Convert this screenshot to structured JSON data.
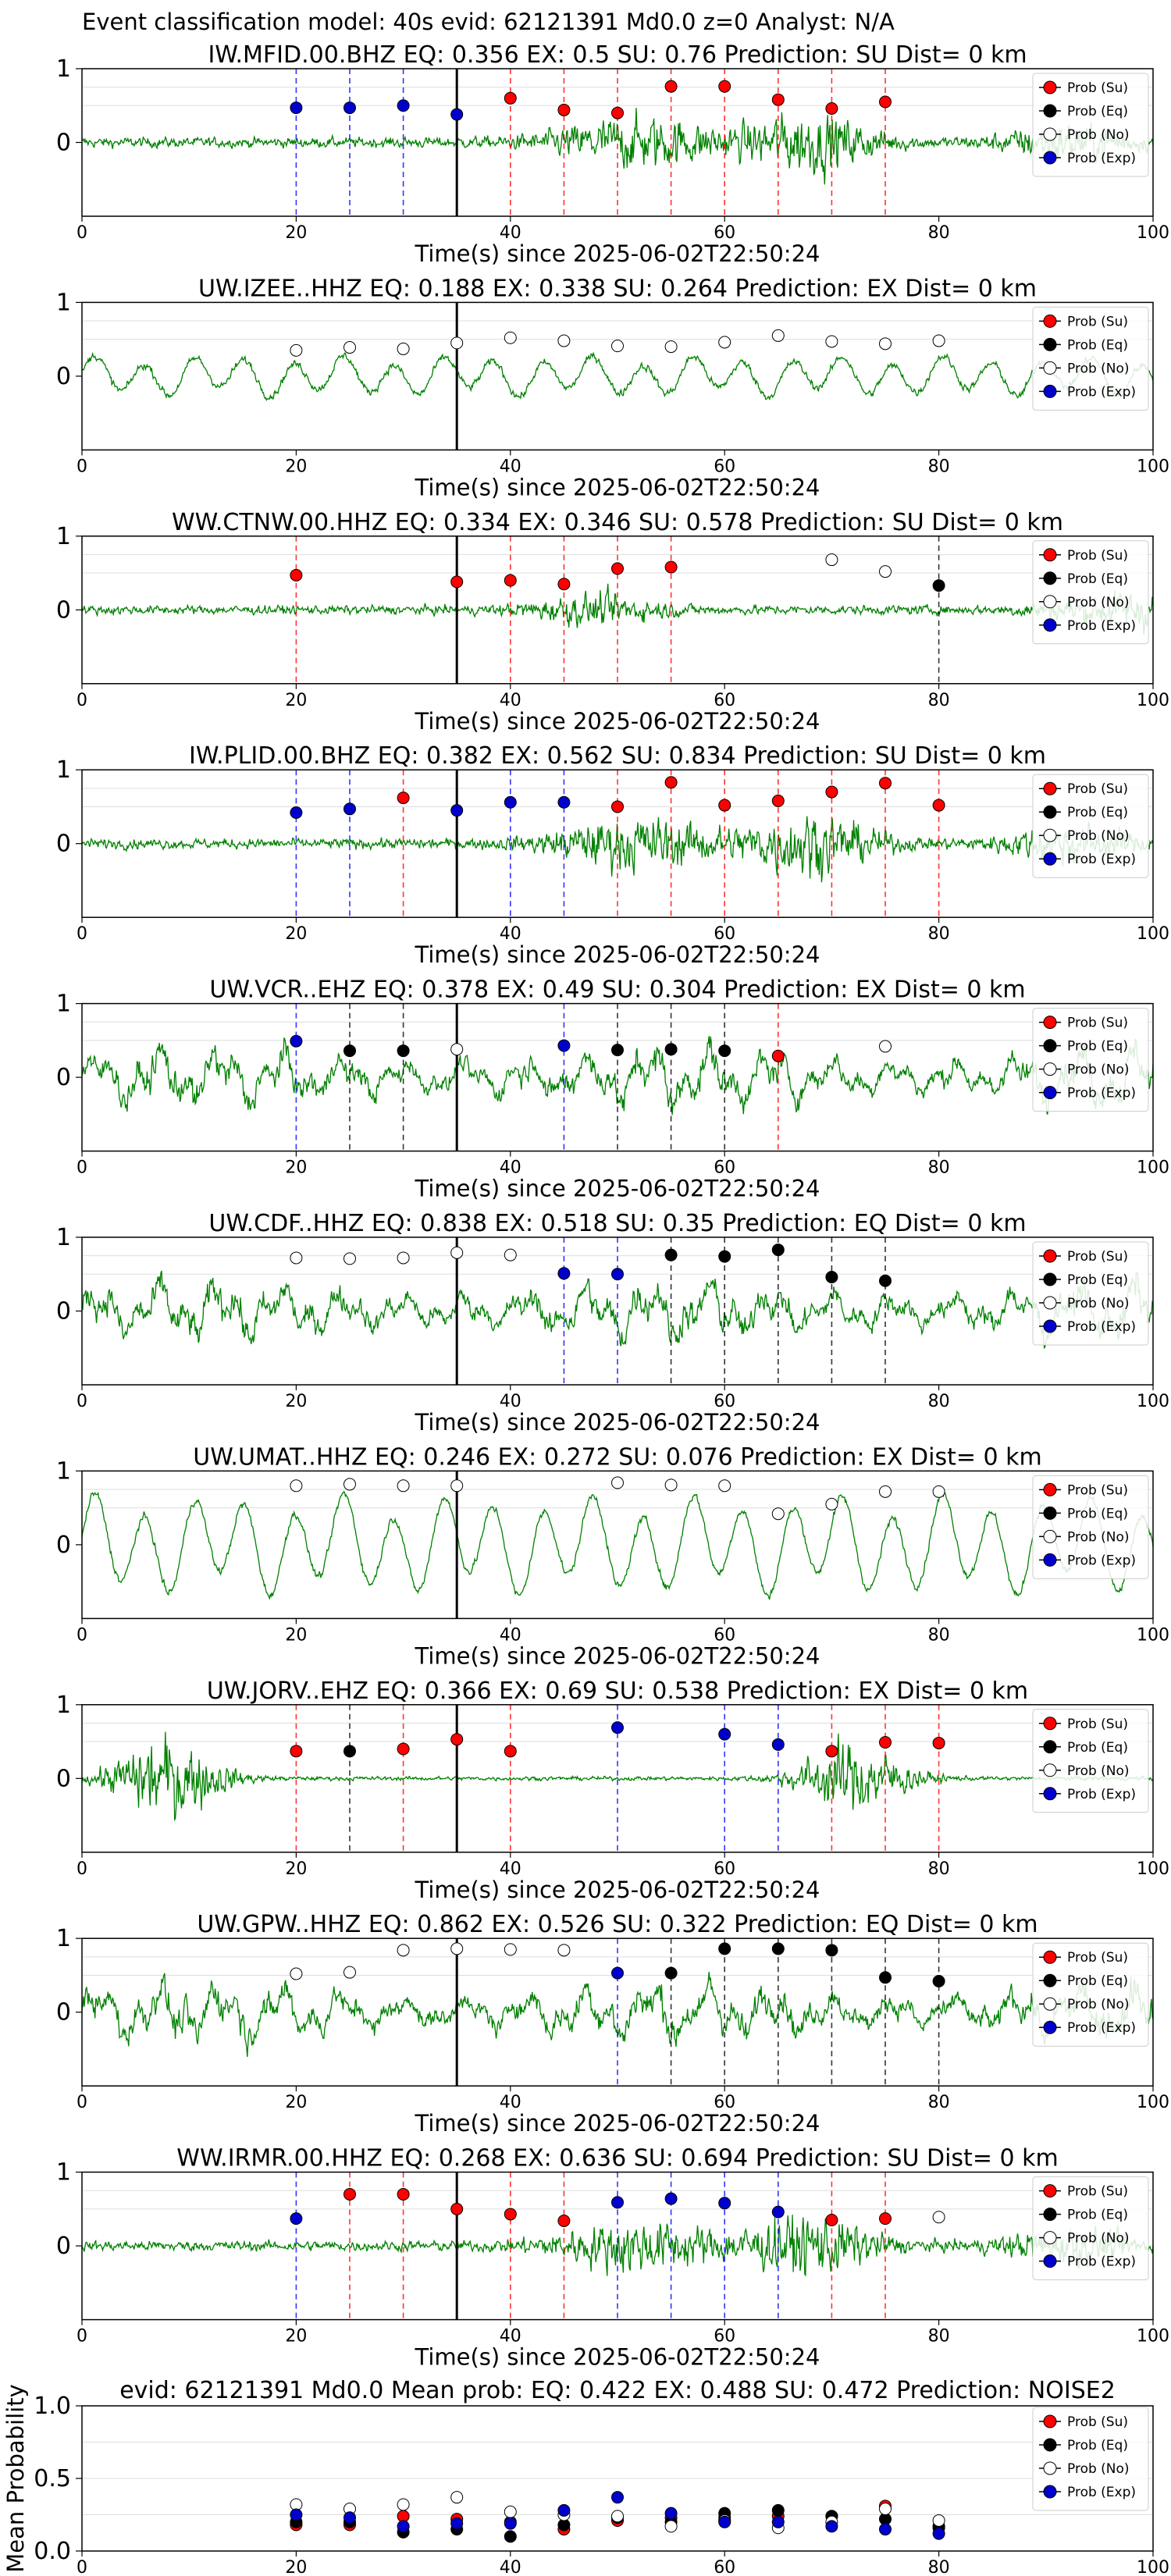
{
  "figure_title": "Event classification model: 40s evid: 62121391 Md0.0 z=0 Analyst: N/A",
  "legend_labels": [
    "Prob (Su)",
    "Prob (Eq)",
    "Prob (No)",
    "Prob (Exp)"
  ],
  "colors": {
    "su": "#ff0000",
    "eq": "#000000",
    "no": "#ffffff",
    "exp": "#0000cc",
    "trace": "#008000",
    "vline_su": "#ff0000",
    "vline_eq": "#000000",
    "vline_exp": "#0000ff"
  },
  "chart_data": [
    {
      "type": "line",
      "station": "IW.MFID.00.BHZ",
      "title": "IW.MFID.00.BHZ   EQ: 0.356  EX: 0.5  SU: 0.76   Prediction: SU    Dist= 0 km",
      "xlabel": "Time(s) since 2025-06-02T22:50:24",
      "xlim": [
        0,
        100
      ],
      "ylim": [
        -1,
        1
      ],
      "xticks": [
        "0",
        "20",
        "40",
        "60",
        "80",
        "100"
      ],
      "yticks": [
        "0",
        "1"
      ],
      "pick_time": 35,
      "trace_style": "noisy_burst",
      "legend": "top-right",
      "points": [
        {
          "x": 20,
          "y": 0.47,
          "class": "exp"
        },
        {
          "x": 25,
          "y": 0.47,
          "class": "exp"
        },
        {
          "x": 30,
          "y": 0.5,
          "class": "exp"
        },
        {
          "x": 35,
          "y": 0.38,
          "class": "exp"
        },
        {
          "x": 40,
          "y": 0.6,
          "class": "su"
        },
        {
          "x": 45,
          "y": 0.44,
          "class": "su"
        },
        {
          "x": 50,
          "y": 0.4,
          "class": "su"
        },
        {
          "x": 55,
          "y": 0.76,
          "class": "su"
        },
        {
          "x": 60,
          "y": 0.76,
          "class": "su"
        },
        {
          "x": 65,
          "y": 0.58,
          "class": "su"
        },
        {
          "x": 70,
          "y": 0.46,
          "class": "su"
        },
        {
          "x": 75,
          "y": 0.55,
          "class": "su"
        }
      ]
    },
    {
      "type": "line",
      "station": "UW.IZEE..HHZ",
      "title": "UW.IZEE..HHZ   EQ: 0.188  EX: 0.338  SU: 0.264   Prediction: EX    Dist= 0 km",
      "xlabel": "Time(s) since 2025-06-02T22:50:24",
      "xlim": [
        0,
        100
      ],
      "ylim": [
        -1,
        1
      ],
      "xticks": [
        "0",
        "20",
        "40",
        "60",
        "80",
        "100"
      ],
      "yticks": [
        "0",
        "1"
      ],
      "pick_time": 35,
      "trace_style": "oscillating",
      "legend": "top-right",
      "points": [
        {
          "x": 20,
          "y": 0.35,
          "class": "no"
        },
        {
          "x": 25,
          "y": 0.39,
          "class": "no"
        },
        {
          "x": 30,
          "y": 0.37,
          "class": "no"
        },
        {
          "x": 35,
          "y": 0.45,
          "class": "no"
        },
        {
          "x": 40,
          "y": 0.52,
          "class": "no"
        },
        {
          "x": 45,
          "y": 0.48,
          "class": "no"
        },
        {
          "x": 50,
          "y": 0.41,
          "class": "no"
        },
        {
          "x": 55,
          "y": 0.4,
          "class": "no"
        },
        {
          "x": 60,
          "y": 0.46,
          "class": "no"
        },
        {
          "x": 65,
          "y": 0.55,
          "class": "no"
        },
        {
          "x": 70,
          "y": 0.47,
          "class": "no"
        },
        {
          "x": 75,
          "y": 0.44,
          "class": "no"
        },
        {
          "x": 80,
          "y": 0.48,
          "class": "no"
        }
      ]
    },
    {
      "type": "line",
      "station": "WW.CTNW.00.HHZ",
      "title": "WW.CTNW.00.HHZ   EQ: 0.334  EX: 0.346  SU: 0.578   Prediction: SU    Dist= 0 km",
      "xlabel": "Time(s) since 2025-06-02T22:50:24",
      "xlim": [
        0,
        100
      ],
      "ylim": [
        -1,
        1
      ],
      "xticks": [
        "0",
        "20",
        "40",
        "60",
        "80",
        "100"
      ],
      "yticks": [
        "0",
        "1"
      ],
      "pick_time": 35,
      "trace_style": "noisy_tail",
      "legend": "top-right",
      "points": [
        {
          "x": 20,
          "y": 0.47,
          "class": "su"
        },
        {
          "x": 35,
          "y": 0.38,
          "class": "su"
        },
        {
          "x": 40,
          "y": 0.4,
          "class": "su"
        },
        {
          "x": 45,
          "y": 0.35,
          "class": "su"
        },
        {
          "x": 50,
          "y": 0.56,
          "class": "su"
        },
        {
          "x": 55,
          "y": 0.58,
          "class": "su"
        },
        {
          "x": 70,
          "y": 0.68,
          "class": "no"
        },
        {
          "x": 75,
          "y": 0.52,
          "class": "no"
        },
        {
          "x": 80,
          "y": 0.33,
          "class": "eq"
        }
      ]
    },
    {
      "type": "line",
      "station": "IW.PLID.00.BHZ",
      "title": "IW.PLID.00.BHZ   EQ: 0.382  EX: 0.562  SU: 0.834   Prediction: SU    Dist= 0 km",
      "xlabel": "Time(s) since 2025-06-02T22:50:24",
      "xlim": [
        0,
        100
      ],
      "ylim": [
        -1,
        1
      ],
      "xticks": [
        "0",
        "20",
        "40",
        "60",
        "80",
        "100"
      ],
      "yticks": [
        "0",
        "1"
      ],
      "pick_time": 35,
      "trace_style": "noisy_burst",
      "legend": "top-right",
      "points": [
        {
          "x": 20,
          "y": 0.42,
          "class": "exp"
        },
        {
          "x": 25,
          "y": 0.47,
          "class": "exp"
        },
        {
          "x": 30,
          "y": 0.62,
          "class": "su"
        },
        {
          "x": 35,
          "y": 0.45,
          "class": "exp"
        },
        {
          "x": 40,
          "y": 0.56,
          "class": "exp"
        },
        {
          "x": 45,
          "y": 0.56,
          "class": "exp"
        },
        {
          "x": 50,
          "y": 0.5,
          "class": "su"
        },
        {
          "x": 55,
          "y": 0.83,
          "class": "su"
        },
        {
          "x": 60,
          "y": 0.52,
          "class": "su"
        },
        {
          "x": 65,
          "y": 0.58,
          "class": "su"
        },
        {
          "x": 70,
          "y": 0.7,
          "class": "su"
        },
        {
          "x": 75,
          "y": 0.82,
          "class": "su"
        },
        {
          "x": 80,
          "y": 0.52,
          "class": "su"
        }
      ]
    },
    {
      "type": "line",
      "station": "UW.VCR..EHZ",
      "title": "UW.VCR..EHZ   EQ: 0.378  EX: 0.49  SU: 0.304   Prediction: EX    Dist= 0 km",
      "xlabel": "Time(s) since 2025-06-02T22:50:24",
      "xlim": [
        0,
        100
      ],
      "ylim": [
        -1,
        1
      ],
      "xticks": [
        "0",
        "20",
        "40",
        "60",
        "80",
        "100"
      ],
      "yticks": [
        "0",
        "1"
      ],
      "pick_time": 35,
      "trace_style": "large_noisy",
      "legend": "top-right",
      "points": [
        {
          "x": 20,
          "y": 0.49,
          "class": "exp"
        },
        {
          "x": 25,
          "y": 0.36,
          "class": "eq"
        },
        {
          "x": 30,
          "y": 0.36,
          "class": "eq"
        },
        {
          "x": 35,
          "y": 0.38,
          "class": "no"
        },
        {
          "x": 45,
          "y": 0.43,
          "class": "exp"
        },
        {
          "x": 50,
          "y": 0.37,
          "class": "eq"
        },
        {
          "x": 55,
          "y": 0.38,
          "class": "eq"
        },
        {
          "x": 60,
          "y": 0.36,
          "class": "eq"
        },
        {
          "x": 65,
          "y": 0.29,
          "class": "su"
        },
        {
          "x": 75,
          "y": 0.42,
          "class": "no"
        }
      ]
    },
    {
      "type": "line",
      "station": "UW.CDF..HHZ",
      "title": "UW.CDF..HHZ   EQ: 0.838  EX: 0.518  SU: 0.35   Prediction: EQ    Dist= 0 km",
      "xlabel": "Time(s) since 2025-06-02T22:50:24",
      "xlim": [
        0,
        100
      ],
      "ylim": [
        -1,
        1
      ],
      "xticks": [
        "0",
        "20",
        "40",
        "60",
        "80",
        "100"
      ],
      "yticks": [
        "0",
        "1"
      ],
      "pick_time": 35,
      "trace_style": "large_noisy",
      "legend": "top-right",
      "points": [
        {
          "x": 20,
          "y": 0.72,
          "class": "no"
        },
        {
          "x": 25,
          "y": 0.71,
          "class": "no"
        },
        {
          "x": 30,
          "y": 0.72,
          "class": "no"
        },
        {
          "x": 35,
          "y": 0.79,
          "class": "no"
        },
        {
          "x": 40,
          "y": 0.76,
          "class": "no"
        },
        {
          "x": 45,
          "y": 0.51,
          "class": "exp"
        },
        {
          "x": 50,
          "y": 0.5,
          "class": "exp"
        },
        {
          "x": 55,
          "y": 0.76,
          "class": "eq"
        },
        {
          "x": 60,
          "y": 0.74,
          "class": "eq"
        },
        {
          "x": 65,
          "y": 0.83,
          "class": "eq"
        },
        {
          "x": 70,
          "y": 0.46,
          "class": "eq"
        },
        {
          "x": 75,
          "y": 0.41,
          "class": "eq"
        }
      ]
    },
    {
      "type": "line",
      "station": "UW.UMAT..HHZ",
      "title": "UW.UMAT..HHZ   EQ: 0.246  EX: 0.272  SU: 0.076   Prediction: EX    Dist= 0 km",
      "xlabel": "Time(s) since 2025-06-02T22:50:24",
      "xlim": [
        0,
        100
      ],
      "ylim": [
        -1,
        1
      ],
      "xticks": [
        "0",
        "20",
        "40",
        "60",
        "80",
        "100"
      ],
      "yticks": [
        "0",
        "1"
      ],
      "pick_time": 35,
      "trace_style": "large_oscillating",
      "legend": "top-right",
      "points": [
        {
          "x": 20,
          "y": 0.8,
          "class": "no"
        },
        {
          "x": 25,
          "y": 0.82,
          "class": "no"
        },
        {
          "x": 30,
          "y": 0.8,
          "class": "no"
        },
        {
          "x": 35,
          "y": 0.8,
          "class": "no"
        },
        {
          "x": 50,
          "y": 0.84,
          "class": "no"
        },
        {
          "x": 55,
          "y": 0.81,
          "class": "no"
        },
        {
          "x": 60,
          "y": 0.8,
          "class": "no"
        },
        {
          "x": 65,
          "y": 0.42,
          "class": "no"
        },
        {
          "x": 70,
          "y": 0.55,
          "class": "no"
        },
        {
          "x": 75,
          "y": 0.72,
          "class": "no"
        },
        {
          "x": 80,
          "y": 0.72,
          "class": "no"
        }
      ]
    },
    {
      "type": "line",
      "station": "UW.JORV..EHZ",
      "title": "UW.JORV..EHZ   EQ: 0.366  EX: 0.69  SU: 0.538   Prediction: EX    Dist= 0 km",
      "xlabel": "Time(s) since 2025-06-02T22:50:24",
      "xlim": [
        0,
        100
      ],
      "ylim": [
        -1,
        1
      ],
      "xticks": [
        "0",
        "20",
        "40",
        "60",
        "80",
        "100"
      ],
      "yticks": [
        "0",
        "1"
      ],
      "pick_time": 35,
      "trace_style": "bursts",
      "legend": "top-right",
      "points": [
        {
          "x": 20,
          "y": 0.37,
          "class": "su"
        },
        {
          "x": 25,
          "y": 0.37,
          "class": "eq"
        },
        {
          "x": 30,
          "y": 0.4,
          "class": "su"
        },
        {
          "x": 35,
          "y": 0.53,
          "class": "su"
        },
        {
          "x": 40,
          "y": 0.37,
          "class": "su"
        },
        {
          "x": 50,
          "y": 0.69,
          "class": "exp"
        },
        {
          "x": 60,
          "y": 0.6,
          "class": "exp"
        },
        {
          "x": 65,
          "y": 0.46,
          "class": "exp"
        },
        {
          "x": 70,
          "y": 0.37,
          "class": "su"
        },
        {
          "x": 75,
          "y": 0.49,
          "class": "su"
        },
        {
          "x": 80,
          "y": 0.48,
          "class": "su"
        }
      ]
    },
    {
      "type": "line",
      "station": "UW.GPW..HHZ",
      "title": "UW.GPW..HHZ   EQ: 0.862  EX: 0.526  SU: 0.322   Prediction: EQ    Dist= 0 km",
      "xlabel": "Time(s) since 2025-06-02T22:50:24",
      "xlim": [
        0,
        100
      ],
      "ylim": [
        -1,
        1
      ],
      "xticks": [
        "0",
        "20",
        "40",
        "60",
        "80",
        "100"
      ],
      "yticks": [
        "0",
        "1"
      ],
      "pick_time": 35,
      "trace_style": "large_noisy",
      "legend": "top-right",
      "points": [
        {
          "x": 20,
          "y": 0.52,
          "class": "no"
        },
        {
          "x": 25,
          "y": 0.54,
          "class": "no"
        },
        {
          "x": 30,
          "y": 0.84,
          "class": "no"
        },
        {
          "x": 35,
          "y": 0.86,
          "class": "no"
        },
        {
          "x": 40,
          "y": 0.85,
          "class": "no"
        },
        {
          "x": 45,
          "y": 0.84,
          "class": "no"
        },
        {
          "x": 50,
          "y": 0.53,
          "class": "exp"
        },
        {
          "x": 55,
          "y": 0.53,
          "class": "eq"
        },
        {
          "x": 60,
          "y": 0.86,
          "class": "eq"
        },
        {
          "x": 65,
          "y": 0.86,
          "class": "eq"
        },
        {
          "x": 70,
          "y": 0.84,
          "class": "eq"
        },
        {
          "x": 75,
          "y": 0.47,
          "class": "eq"
        },
        {
          "x": 80,
          "y": 0.42,
          "class": "eq"
        }
      ]
    },
    {
      "type": "line",
      "station": "WW.IRMR.00.HHZ",
      "title": "WW.IRMR.00.HHZ   EQ: 0.268  EX: 0.636  SU: 0.694   Prediction: SU    Dist= 0 km",
      "xlabel": "Time(s) since 2025-06-02T22:50:24",
      "xlim": [
        0,
        100
      ],
      "ylim": [
        -1,
        1
      ],
      "xticks": [
        "0",
        "20",
        "40",
        "60",
        "80",
        "100"
      ],
      "yticks": [
        "0",
        "1"
      ],
      "pick_time": 35,
      "trace_style": "noisy_burst",
      "legend": "top-right",
      "points": [
        {
          "x": 20,
          "y": 0.37,
          "class": "exp"
        },
        {
          "x": 25,
          "y": 0.7,
          "class": "su"
        },
        {
          "x": 30,
          "y": 0.7,
          "class": "su"
        },
        {
          "x": 35,
          "y": 0.5,
          "class": "su"
        },
        {
          "x": 40,
          "y": 0.43,
          "class": "su"
        },
        {
          "x": 45,
          "y": 0.34,
          "class": "su"
        },
        {
          "x": 50,
          "y": 0.59,
          "class": "exp"
        },
        {
          "x": 55,
          "y": 0.64,
          "class": "exp"
        },
        {
          "x": 60,
          "y": 0.58,
          "class": "exp"
        },
        {
          "x": 65,
          "y": 0.46,
          "class": "exp"
        },
        {
          "x": 70,
          "y": 0.35,
          "class": "su"
        },
        {
          "x": 75,
          "y": 0.37,
          "class": "su"
        },
        {
          "x": 80,
          "y": 0.39,
          "class": "no"
        }
      ]
    },
    {
      "type": "scatter",
      "title": "evid: 62121391  Md0.0   Mean prob:   EQ: 0.422  EX: 0.488  SU: 0.472   Prediction: NOISE2",
      "ylabel": "Mean Probability",
      "xlim": [
        0,
        100
      ],
      "ylim": [
        0,
        1
      ],
      "xticks": [
        "0",
        "20",
        "40",
        "60",
        "80",
        "100"
      ],
      "yticks": [
        "0.0",
        "0.5",
        "1.0"
      ],
      "legend": "top-right",
      "x": [
        20,
        25,
        30,
        35,
        40,
        45,
        50,
        55,
        60,
        65,
        70,
        75,
        80
      ],
      "series": [
        {
          "name": "Prob (Su)",
          "class": "su",
          "values": [
            0.18,
            0.18,
            0.24,
            0.22,
            0.2,
            0.15,
            0.21,
            0.23,
            0.23,
            0.24,
            0.24,
            0.31,
            0.16
          ]
        },
        {
          "name": "Prob (Eq)",
          "class": "eq",
          "values": [
            0.2,
            0.2,
            0.13,
            0.15,
            0.1,
            0.18,
            0.23,
            0.2,
            0.26,
            0.28,
            0.24,
            0.22,
            0.17
          ]
        },
        {
          "name": "Prob (No)",
          "class": "no",
          "values": [
            0.32,
            0.29,
            0.32,
            0.37,
            0.27,
            0.25,
            0.24,
            0.17,
            0.21,
            0.16,
            0.2,
            0.29,
            0.21
          ]
        },
        {
          "name": "Prob (Exp)",
          "class": "exp",
          "values": [
            0.25,
            0.23,
            0.17,
            0.19,
            0.19,
            0.28,
            0.37,
            0.26,
            0.2,
            0.2,
            0.17,
            0.15,
            0.12
          ]
        }
      ]
    }
  ]
}
